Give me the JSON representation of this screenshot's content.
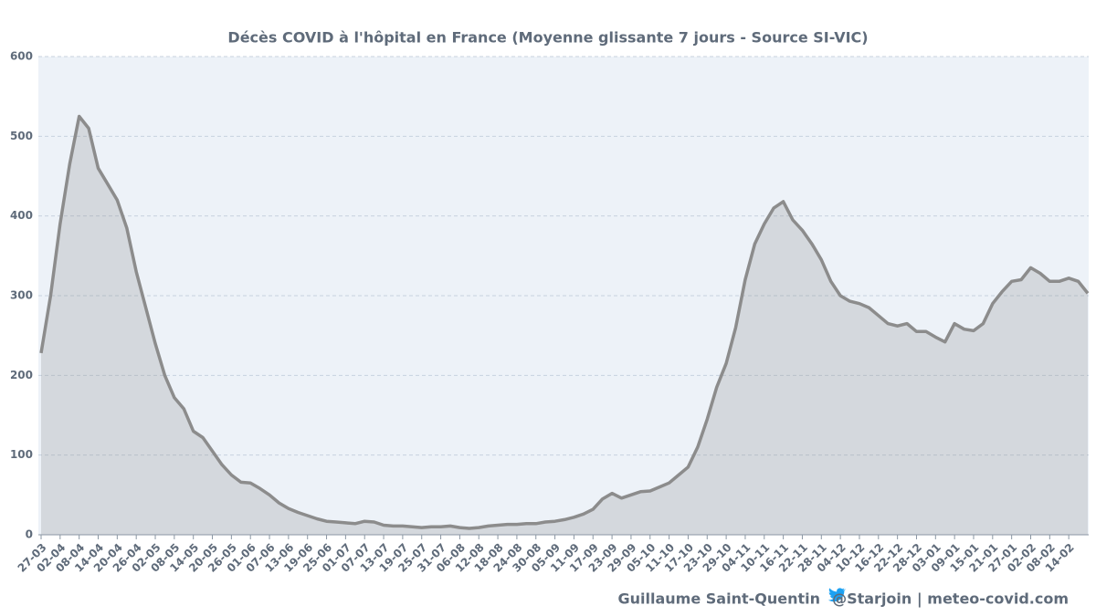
{
  "chart_data": {
    "type": "area",
    "title": "Décès COVID à l'hôpital en France (Moyenne glissante 7 jours - Source SI-VIC)",
    "footer_author": "Guillaume Saint-Quentin",
    "footer_handle": "@Starjoin | meteo-covid.com",
    "categories": [
      "27-03",
      null,
      "02-04",
      null,
      "08-04",
      null,
      "14-04",
      null,
      "20-04",
      null,
      "26-04",
      null,
      "02-05",
      null,
      "08-05",
      null,
      "14-05",
      null,
      "20-05",
      null,
      "26-05",
      null,
      "01-06",
      null,
      "07-06",
      null,
      "13-06",
      null,
      "19-06",
      null,
      "25-06",
      null,
      "01-07",
      null,
      "07-07",
      null,
      "13-07",
      null,
      "19-07",
      null,
      "25-07",
      null,
      "31-07",
      null,
      "06-08",
      null,
      "12-08",
      null,
      "18-08",
      null,
      "24-08",
      null,
      "30-08",
      null,
      "05-09",
      null,
      "11-09",
      null,
      "17-09",
      null,
      "23-09",
      null,
      "29-09",
      null,
      "05-10",
      null,
      "11-10",
      null,
      "17-10",
      null,
      "23-10",
      null,
      "29-10",
      null,
      "04-11",
      null,
      "10-11",
      null,
      "16-11",
      null,
      "22-11",
      null,
      "28-11",
      null,
      "04-12",
      null,
      "10-12",
      null,
      "16-12",
      null,
      "22-12",
      null,
      "28-12",
      null,
      "03-01",
      null,
      "09-01",
      null,
      "15-01",
      null,
      "21-01",
      null,
      "27-01",
      null,
      "02-02",
      null,
      "08-02",
      null,
      "14-02",
      null,
      null
    ],
    "values": [
      228,
      300,
      390,
      465,
      525,
      510,
      460,
      440,
      420,
      385,
      330,
      285,
      240,
      200,
      172,
      158,
      130,
      122,
      105,
      88,
      75,
      66,
      65,
      58,
      50,
      40,
      33,
      28,
      24,
      20,
      17,
      16,
      15,
      14,
      17,
      16,
      12,
      11,
      11,
      10,
      9,
      10,
      10,
      11,
      9,
      8,
      9,
      11,
      12,
      13,
      13,
      14,
      14,
      16,
      17,
      19,
      22,
      26,
      32,
      45,
      52,
      46,
      50,
      54,
      55,
      60,
      65,
      75,
      85,
      110,
      145,
      185,
      215,
      260,
      320,
      365,
      390,
      410,
      418,
      395,
      382,
      365,
      345,
      318,
      300,
      293,
      290,
      285,
      275,
      265,
      262,
      265,
      255,
      255,
      248,
      242,
      265,
      258,
      256,
      265,
      290,
      305,
      318,
      320,
      335,
      328,
      318,
      318,
      322,
      318,
      303
    ],
    "color": "#8c8c8c",
    "ylim": [
      0,
      600
    ],
    "yticks": [
      0,
      100,
      200,
      300,
      400,
      500,
      600
    ],
    "grid": true
  }
}
